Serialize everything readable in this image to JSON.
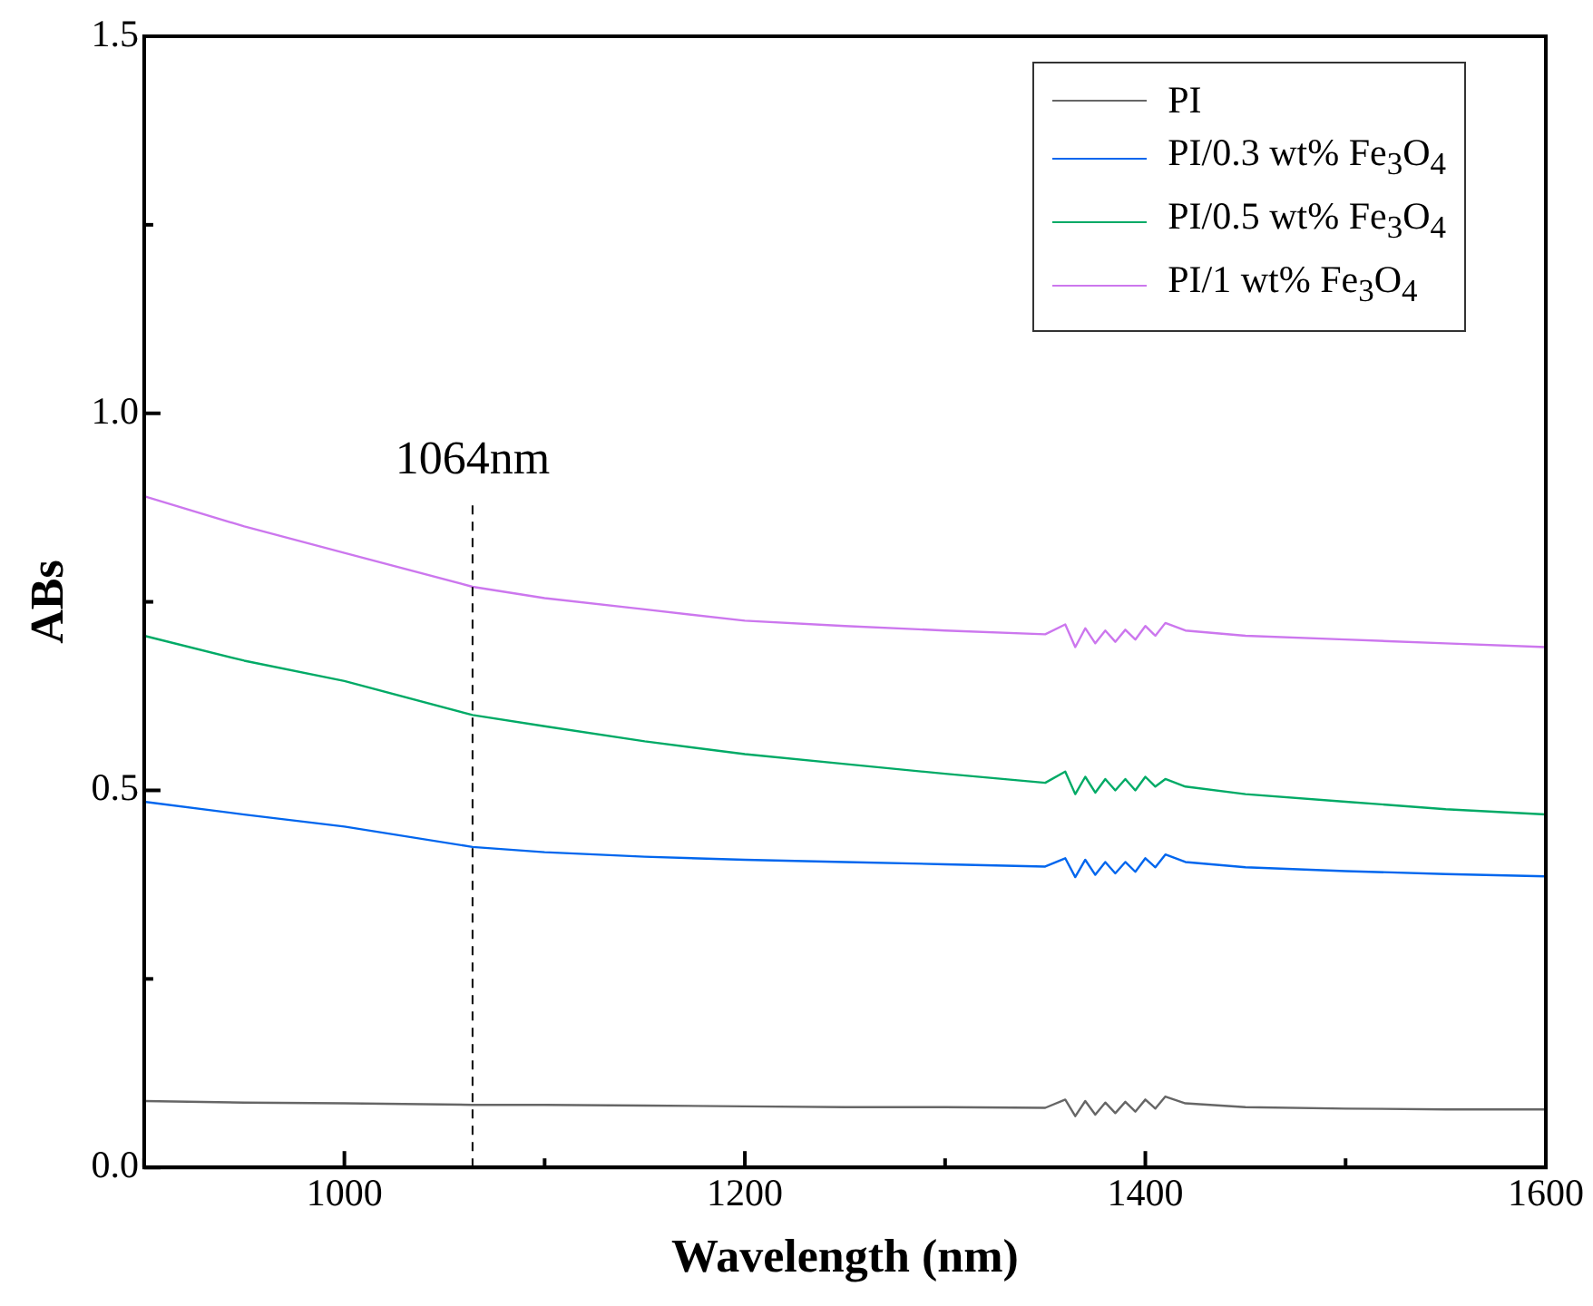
{
  "chart_data": {
    "type": "line",
    "xlabel": "Wavelength (nm)",
    "ylabel": "ABs",
    "x": [
      900,
      950,
      1000,
      1064,
      1100,
      1150,
      1200,
      1250,
      1300,
      1350,
      1360,
      1365,
      1370,
      1375,
      1380,
      1385,
      1390,
      1395,
      1400,
      1405,
      1410,
      1420,
      1450,
      1500,
      1550,
      1600
    ],
    "series": [
      {
        "name": "PI",
        "color": "#666666",
        "values": [
          0.088,
          0.086,
          0.085,
          0.083,
          0.083,
          0.082,
          0.081,
          0.08,
          0.08,
          0.079,
          0.09,
          0.068,
          0.088,
          0.07,
          0.086,
          0.072,
          0.087,
          0.074,
          0.09,
          0.078,
          0.094,
          0.085,
          0.08,
          0.078,
          0.077,
          0.077
        ]
      },
      {
        "name": "PI/0.3 wt% Fe$_{3}$O$_{4}$",
        "color": "#0066ee",
        "values": [
          0.485,
          0.468,
          0.452,
          0.425,
          0.418,
          0.412,
          0.408,
          0.405,
          0.402,
          0.399,
          0.41,
          0.385,
          0.408,
          0.388,
          0.405,
          0.39,
          0.405,
          0.392,
          0.41,
          0.398,
          0.415,
          0.405,
          0.398,
          0.393,
          0.389,
          0.386
        ]
      },
      {
        "name": "PI/0.5 wt% Fe$_{3}$O$_{4}$",
        "color": "#00aa66",
        "values": [
          0.705,
          0.672,
          0.645,
          0.6,
          0.585,
          0.565,
          0.548,
          0.535,
          0.522,
          0.51,
          0.525,
          0.495,
          0.518,
          0.497,
          0.515,
          0.5,
          0.515,
          0.5,
          0.518,
          0.505,
          0.515,
          0.505,
          0.495,
          0.485,
          0.475,
          0.468
        ]
      },
      {
        "name": "PI/1 wt% Fe$_{3}$O$_{4}$",
        "color": "#cc77ee",
        "values": [
          0.89,
          0.85,
          0.815,
          0.77,
          0.755,
          0.74,
          0.725,
          0.718,
          0.712,
          0.707,
          0.72,
          0.69,
          0.715,
          0.695,
          0.712,
          0.697,
          0.713,
          0.7,
          0.718,
          0.705,
          0.722,
          0.712,
          0.705,
          0.7,
          0.695,
          0.69
        ]
      }
    ],
    "xlim": [
      900,
      1600
    ],
    "xticks": [
      {
        "value": 900,
        "label": null
      },
      1000,
      {
        "value": 1100,
        "label": null
      },
      1200,
      {
        "value": 1300,
        "label": null
      },
      1400,
      {
        "value": 1500,
        "label": null
      },
      1600
    ],
    "ylim": [
      0,
      1.5
    ],
    "yticks": [
      {
        "value": 0,
        "label": "0.0"
      },
      {
        "value": 0.25,
        "label": null
      },
      0.5,
      {
        "value": 0.75,
        "label": null
      },
      {
        "value": 1,
        "label": "1.0"
      },
      {
        "value": 1.25,
        "label": null
      },
      1.5
    ],
    "ref_lines": [
      {
        "axis": "x",
        "value": 1064,
        "label": "1064nm",
        "color": "#000000",
        "line_style": "dashed"
      }
    ],
    "legend": "top right",
    "grid": false,
    "marker": "none",
    "line_style": "solid"
  }
}
